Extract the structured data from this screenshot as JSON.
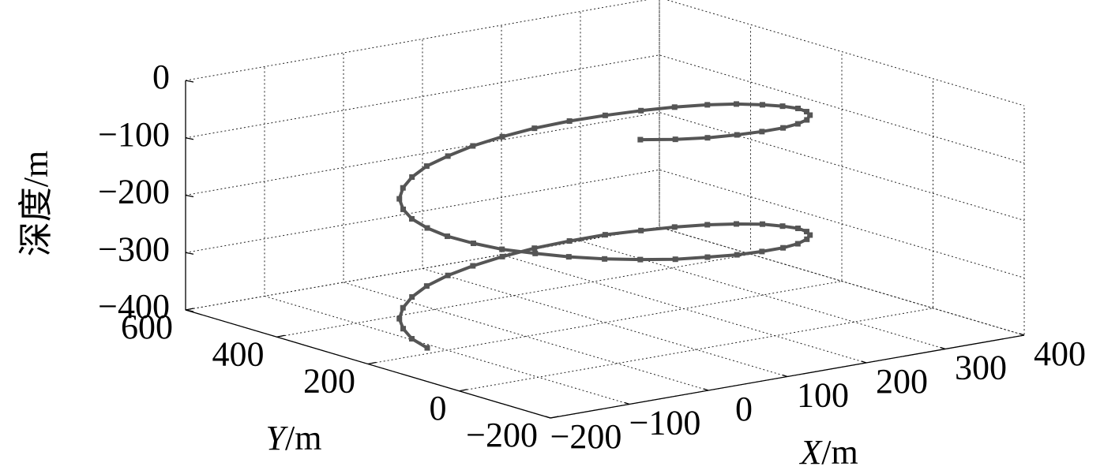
{
  "chart_data": {
    "type": "line3d",
    "xlabel": "X/m",
    "ylabel": "Y/m",
    "zlabel": "深度/m",
    "xlim": [
      -200,
      400
    ],
    "ylim": [
      -200,
      600
    ],
    "zlim": [
      -400,
      0
    ],
    "xticks": [
      {
        "value": -200,
        "label": "−200"
      },
      {
        "value": -100,
        "label": "−100"
      },
      0,
      100,
      200,
      300,
      400
    ],
    "yticks": [
      {
        "value": -200,
        "label": "−200"
      },
      0,
      200,
      400,
      600
    ],
    "zticks": [
      0,
      {
        "value": -100,
        "label": "−100"
      },
      {
        "value": -200,
        "label": "−200"
      },
      {
        "value": -300,
        "label": "−300"
      },
      {
        "value": -400,
        "label": "−400"
      }
    ],
    "grid": true,
    "color": "#555555",
    "x": [
      -125,
      -122,
      -111,
      -95,
      -72,
      -45,
      -13,
      23,
      61,
      100,
      139,
      177,
      213,
      245,
      272,
      295,
      311,
      322,
      325,
      322,
      311,
      295,
      272,
      245,
      213,
      177,
      139,
      100,
      61,
      23,
      -13,
      -45,
      -72,
      -95,
      -111,
      -122,
      -125,
      -122,
      -111,
      -95,
      -72,
      -45,
      -13,
      23,
      61,
      100,
      139,
      177,
      213,
      245,
      272,
      295,
      311,
      322,
      325,
      322,
      311,
      295,
      272,
      245,
      213,
      177,
      139,
      100,
      61,
      23
    ],
    "y": [
      200,
      239,
      277,
      313,
      345,
      372,
      395,
      411,
      422,
      425,
      422,
      411,
      395,
      372,
      345,
      313,
      277,
      239,
      200,
      161,
      123,
      88,
      55,
      28,
      5,
      -11,
      -22,
      -25,
      -22,
      -11,
      5,
      28,
      55,
      88,
      123,
      161,
      200,
      239,
      277,
      313,
      345,
      372,
      395,
      411,
      422,
      425,
      422,
      411,
      395,
      372,
      345,
      313,
      277,
      239,
      200,
      161,
      123,
      88,
      55,
      28,
      5,
      -11,
      -22,
      -25,
      -22,
      -11
    ],
    "z": [
      -390,
      -384,
      -378,
      -373,
      -367,
      -361,
      -355,
      -349,
      -344,
      -338,
      -332,
      -326,
      -320,
      -315,
      -309,
      -303,
      -297,
      -291,
      -286,
      -280,
      -274,
      -268,
      -262,
      -257,
      -251,
      -245,
      -239,
      -233,
      -228,
      -222,
      -216,
      -210,
      -204,
      -199,
      -193,
      -187,
      -181,
      -175,
      -170,
      -164,
      -158,
      -152,
      -146,
      -141,
      -135,
      -129,
      -123,
      -117,
      -112,
      -106,
      -100,
      -94,
      -88,
      -83,
      -77,
      -71,
      -65,
      -59,
      -54,
      -48,
      -42,
      -36,
      -30,
      -25,
      -19,
      -13
    ]
  }
}
